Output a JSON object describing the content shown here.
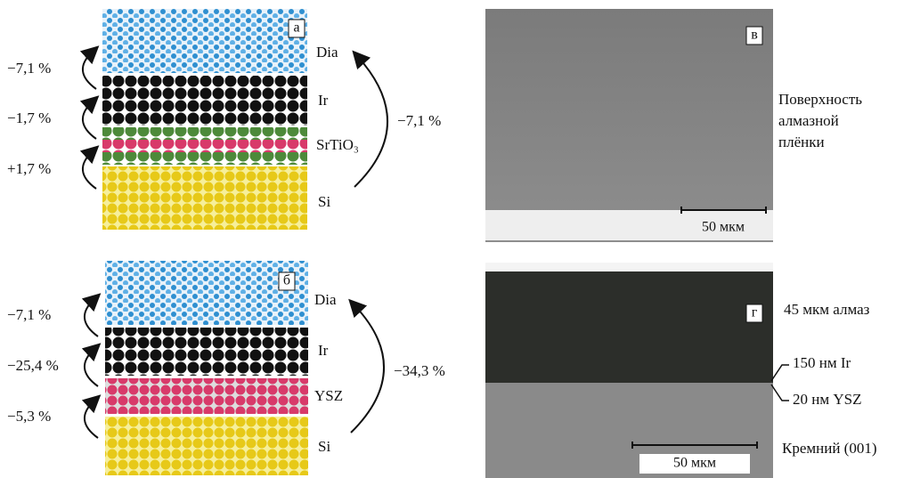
{
  "panel_a": {
    "letter": "а",
    "layers": [
      "Dia",
      "Ir",
      "SrTiO₃",
      "Si"
    ],
    "left_strains": [
      "−7,1 %",
      "−1,7 %",
      "+1,7 %"
    ],
    "total_strain": "−7,1 %"
  },
  "panel_b": {
    "letter": "б",
    "layers": [
      "Dia",
      "Ir",
      "YSZ",
      "Si"
    ],
    "left_strains": [
      "−7,1 %",
      "−25,4 %",
      "−5,3 %"
    ],
    "total_strain": "−34,3 %"
  },
  "panel_v": {
    "letter": "в",
    "scale_bar": "50 мкм",
    "caption": [
      "Поверхность",
      "алмазной",
      "плёнки"
    ]
  },
  "panel_g": {
    "letter": "г",
    "scale_bar": "50 мкм",
    "labels": [
      "45 мкм алмаз",
      "150 нм Ir",
      "20 нм YSZ",
      "Кремний (001)"
    ]
  }
}
